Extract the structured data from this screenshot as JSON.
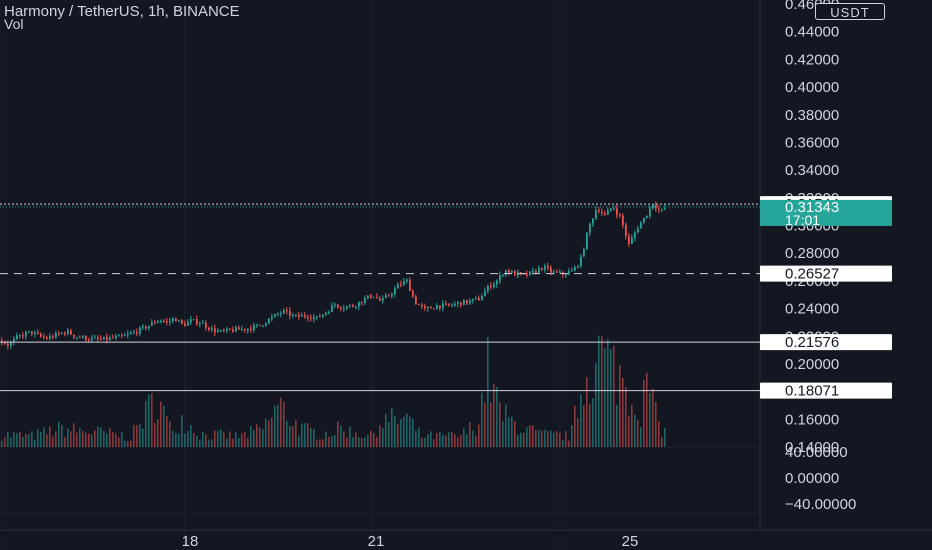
{
  "header": {
    "title": "Harmony / TetherUS, 1h, BINANCE",
    "volume_label": "Vol",
    "currency_button": "USDT"
  },
  "colors": {
    "background": "#131722",
    "up": "#26a69a",
    "down": "#ef5350",
    "axis_text": "#d1d4dc",
    "grid": "#1e222d",
    "last_price_badge": "#26a69a"
  },
  "chart_data": {
    "type": "candlestick",
    "symbol": "Harmony / TetherUS",
    "interval": "1h",
    "exchange": "BINANCE",
    "price_axis": {
      "ticks": [
        "0.46000",
        "0.44000",
        "0.42000",
        "0.40000",
        "0.38000",
        "0.36000",
        "0.34000",
        "0.32000",
        "0.30000",
        "0.28000",
        "0.26000",
        "0.24000",
        "0.22000",
        "0.20000",
        "0.18000",
        "0.16000",
        "0.14000"
      ],
      "range": [
        0.14,
        0.46
      ]
    },
    "volume_axis": {
      "ticks": [
        "40.00000",
        "0.00000",
        "−40.00000"
      ]
    },
    "x_axis": {
      "ticks": [
        "18",
        "21",
        "25"
      ]
    },
    "horizontal_lines": [
      {
        "value": "0.31544",
        "style": "dotted"
      },
      {
        "value": "0.26527",
        "style": "dashed"
      },
      {
        "value": "0.21576",
        "style": "solid"
      },
      {
        "value": "0.18071",
        "style": "solid"
      }
    ],
    "last_price": {
      "value": "0.31343",
      "countdown": "17:01"
    },
    "close_path": [
      [
        0,
        0.2169
      ],
      [
        8,
        0.2135
      ],
      [
        16,
        0.219
      ],
      [
        22,
        0.221
      ],
      [
        30,
        0.223
      ],
      [
        38,
        0.22
      ],
      [
        46,
        0.2185
      ],
      [
        56,
        0.221
      ],
      [
        66,
        0.2235
      ],
      [
        74,
        0.22
      ],
      [
        82,
        0.219
      ],
      [
        90,
        0.218
      ],
      [
        100,
        0.2175
      ],
      [
        110,
        0.2185
      ],
      [
        122,
        0.2195
      ],
      [
        134,
        0.223
      ],
      [
        146,
        0.227
      ],
      [
        158,
        0.232
      ],
      [
        166,
        0.23
      ],
      [
        174,
        0.233
      ],
      [
        182,
        0.228
      ],
      [
        190,
        0.231
      ],
      [
        200,
        0.23
      ],
      [
        210,
        0.225
      ],
      [
        220,
        0.223
      ],
      [
        232,
        0.2245
      ],
      [
        246,
        0.2255
      ],
      [
        258,
        0.2275
      ],
      [
        270,
        0.233
      ],
      [
        282,
        0.238
      ],
      [
        294,
        0.234
      ],
      [
        306,
        0.235
      ],
      [
        316,
        0.233
      ],
      [
        326,
        0.238
      ],
      [
        334,
        0.243
      ],
      [
        342,
        0.241
      ],
      [
        352,
        0.242
      ],
      [
        362,
        0.246
      ],
      [
        372,
        0.25
      ],
      [
        380,
        0.245
      ],
      [
        390,
        0.251
      ],
      [
        398,
        0.257
      ],
      [
        406,
        0.26
      ],
      [
        414,
        0.245
      ],
      [
        424,
        0.239
      ],
      [
        436,
        0.242
      ],
      [
        448,
        0.242
      ],
      [
        458,
        0.244
      ],
      [
        468,
        0.245
      ],
      [
        478,
        0.247
      ],
      [
        488,
        0.256
      ],
      [
        496,
        0.26
      ],
      [
        504,
        0.268
      ],
      [
        514,
        0.265
      ],
      [
        524,
        0.264
      ],
      [
        532,
        0.266
      ],
      [
        542,
        0.27
      ],
      [
        552,
        0.266
      ],
      [
        562,
        0.265
      ],
      [
        572,
        0.267
      ],
      [
        580,
        0.276
      ],
      [
        588,
        0.299
      ],
      [
        596,
        0.313
      ],
      [
        604,
        0.307
      ],
      [
        612,
        0.314
      ],
      [
        620,
        0.305
      ],
      [
        628,
        0.286
      ],
      [
        636,
        0.298
      ],
      [
        644,
        0.306
      ],
      [
        652,
        0.316
      ],
      [
        660,
        0.31
      ],
      [
        666,
        0.3134
      ]
    ],
    "volume_path": [
      [
        0,
        14
      ],
      [
        30,
        12
      ],
      [
        60,
        20
      ],
      [
        100,
        16
      ],
      [
        130,
        11
      ],
      [
        156,
        56
      ],
      [
        170,
        18
      ],
      [
        180,
        32
      ],
      [
        200,
        14
      ],
      [
        240,
        12
      ],
      [
        262,
        20
      ],
      [
        278,
        46
      ],
      [
        300,
        20
      ],
      [
        320,
        14
      ],
      [
        340,
        20
      ],
      [
        370,
        12
      ],
      [
        380,
        28
      ],
      [
        406,
        32
      ],
      [
        420,
        12
      ],
      [
        460,
        12
      ],
      [
        478,
        28
      ],
      [
        486,
        88
      ],
      [
        500,
        36
      ],
      [
        520,
        22
      ],
      [
        540,
        14
      ],
      [
        570,
        12
      ],
      [
        582,
        70
      ],
      [
        590,
        88
      ],
      [
        600,
        104
      ],
      [
        610,
        90
      ],
      [
        620,
        78
      ],
      [
        630,
        56
      ],
      [
        640,
        44
      ],
      [
        648,
        72
      ],
      [
        656,
        28
      ],
      [
        666,
        14
      ]
    ]
  }
}
